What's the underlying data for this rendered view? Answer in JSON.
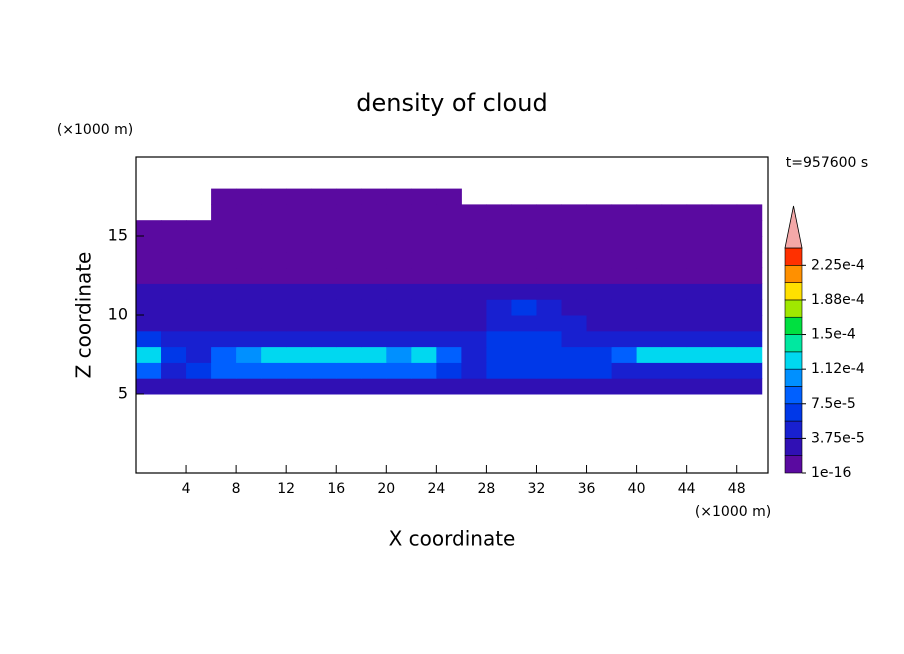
{
  "chart_data": {
    "type": "heatmap",
    "title": "density of cloud",
    "xlabel": "X coordinate",
    "ylabel": "Z coordinate",
    "x_unit": "(×1000 m)",
    "y_unit": "(×1000 m)",
    "annotation": "t=957600 s",
    "xlim": [
      0,
      50.5
    ],
    "ylim": [
      0,
      20
    ],
    "xticks": [
      4,
      8,
      12,
      16,
      20,
      24,
      28,
      32,
      36,
      40,
      44,
      48
    ],
    "yticks": [
      5,
      10,
      15
    ],
    "x": [
      1,
      3,
      5,
      7,
      9,
      11,
      13,
      15,
      17,
      19,
      21,
      23,
      25,
      27,
      29,
      31,
      33,
      35,
      37,
      39,
      41,
      43,
      45,
      47,
      49
    ],
    "y": [
      5.5,
      6.5,
      7.5,
      8.5,
      9.5,
      10.5,
      11.5,
      12.5,
      13.5,
      14.5,
      15.5,
      16.5,
      17.5
    ],
    "z": [
      [
        2e-05,
        2e-05,
        2e-05,
        2e-05,
        2e-05,
        2e-05,
        2e-05,
        2e-05,
        2e-05,
        2e-05,
        2e-05,
        2e-05,
        2e-05,
        2e-05,
        2e-05,
        2e-05,
        2e-05,
        2e-05,
        2e-05,
        2e-05,
        2e-05,
        2e-05,
        2e-05,
        2e-05,
        2e-05
      ],
      [
        8e-05,
        4e-05,
        6e-05,
        8e-05,
        8e-05,
        8e-05,
        8e-05,
        8e-05,
        8e-05,
        8e-05,
        8e-05,
        8e-05,
        6e-05,
        4e-05,
        6e-05,
        6e-05,
        6e-05,
        6e-05,
        6e-05,
        4e-05,
        4e-05,
        4e-05,
        4e-05,
        4e-05,
        4e-05
      ],
      [
        0.00012,
        6e-05,
        4e-05,
        8e-05,
        0.0001,
        0.00012,
        0.00012,
        0.00012,
        0.00012,
        0.00012,
        0.0001,
        0.00012,
        8e-05,
        4e-05,
        6e-05,
        6e-05,
        6e-05,
        6e-05,
        6e-05,
        8e-05,
        0.00012,
        0.00012,
        0.00012,
        0.00012,
        0.00012
      ],
      [
        6e-05,
        4e-05,
        4e-05,
        4e-05,
        4e-05,
        4e-05,
        4e-05,
        4e-05,
        4e-05,
        4e-05,
        4e-05,
        4e-05,
        4e-05,
        4e-05,
        6e-05,
        6e-05,
        6e-05,
        4e-05,
        4e-05,
        4e-05,
        4e-05,
        4e-05,
        4e-05,
        4e-05,
        4e-05
      ],
      [
        2e-05,
        2e-05,
        2e-05,
        2e-05,
        2e-05,
        2e-05,
        2e-05,
        2e-05,
        2e-05,
        2e-05,
        2e-05,
        2e-05,
        2e-05,
        2e-05,
        4e-05,
        4e-05,
        4e-05,
        4e-05,
        2e-05,
        2e-05,
        2e-05,
        2e-05,
        2e-05,
        2e-05,
        2e-05
      ],
      [
        2e-05,
        2e-05,
        2e-05,
        2e-05,
        2e-05,
        2e-05,
        2e-05,
        2e-05,
        2e-05,
        2e-05,
        2e-05,
        2e-05,
        2e-05,
        2e-05,
        4e-05,
        6e-05,
        4e-05,
        2e-05,
        2e-05,
        2e-05,
        2e-05,
        2e-05,
        2e-05,
        2e-05,
        2e-05
      ],
      [
        2e-05,
        2e-05,
        2e-05,
        2e-05,
        2e-05,
        2e-05,
        2e-05,
        2e-05,
        2e-05,
        2e-05,
        2e-05,
        2e-05,
        2e-05,
        2e-05,
        2e-05,
        2e-05,
        2e-05,
        2e-05,
        2e-05,
        2e-05,
        2e-05,
        2e-05,
        2e-05,
        2e-05,
        2e-05
      ],
      [
        1e-06,
        1e-06,
        1e-06,
        1e-06,
        1e-06,
        1e-06,
        1e-06,
        1e-06,
        1e-06,
        1e-06,
        1e-06,
        1e-06,
        1e-06,
        1e-06,
        1e-06,
        1e-06,
        1e-06,
        1e-06,
        1e-06,
        1e-06,
        1e-06,
        1e-06,
        1e-06,
        1e-06,
        1e-06
      ],
      [
        1e-06,
        1e-06,
        1e-06,
        1e-06,
        1e-06,
        1e-06,
        1e-06,
        1e-06,
        1e-06,
        1e-06,
        1e-06,
        1e-06,
        1e-06,
        1e-06,
        1e-06,
        1e-06,
        1e-06,
        1e-06,
        1e-06,
        1e-06,
        1e-06,
        1e-06,
        1e-06,
        1e-06,
        1e-06
      ],
      [
        1e-06,
        1e-06,
        1e-06,
        1e-06,
        1e-06,
        1e-06,
        1e-06,
        1e-06,
        1e-06,
        1e-06,
        1e-06,
        1e-06,
        1e-06,
        1e-06,
        1e-06,
        1e-06,
        1e-06,
        1e-06,
        1e-06,
        1e-06,
        1e-06,
        1e-06,
        1e-06,
        1e-06,
        1e-06
      ],
      [
        1e-06,
        1e-06,
        1e-06,
        1e-06,
        1e-06,
        1e-06,
        1e-06,
        1e-06,
        1e-06,
        1e-06,
        1e-06,
        1e-06,
        1e-06,
        1e-06,
        1e-06,
        1e-06,
        1e-06,
        1e-06,
        1e-06,
        1e-06,
        1e-06,
        1e-06,
        1e-06,
        1e-06,
        1e-06
      ],
      [
        null,
        null,
        null,
        1e-06,
        1e-06,
        1e-06,
        1e-06,
        1e-06,
        1e-06,
        1e-06,
        1e-06,
        1e-06,
        1e-06,
        1e-06,
        1e-06,
        1e-06,
        1e-06,
        1e-06,
        1e-06,
        1e-06,
        1e-06,
        1e-06,
        1e-06,
        1e-06,
        1e-06
      ],
      [
        null,
        null,
        null,
        1e-06,
        1e-06,
        1e-06,
        1e-06,
        1e-06,
        1e-06,
        1e-06,
        1e-06,
        1e-06,
        1e-06,
        null,
        null,
        null,
        null,
        null,
        null,
        null,
        null,
        null,
        null,
        null,
        null
      ]
    ],
    "colorbar": {
      "levels": [
        1e-16,
        1.875e-05,
        3.75e-05,
        5.625e-05,
        7.5e-05,
        9.375e-05,
        0.0001125,
        0.00013125,
        0.00015,
        0.00016875,
        0.0001875,
        0.00020625,
        0.000225,
        0.00024375
      ],
      "colors": [
        "#5a0aa0",
        "#3010b4",
        "#1820d0",
        "#0038e8",
        "#0060ff",
        "#0090ff",
        "#00d8f0",
        "#00e8a0",
        "#00e040",
        "#a0e800",
        "#ffe000",
        "#ff9000",
        "#ff3000"
      ],
      "over_color": "#f4a8a8",
      "ticks": [
        {
          "value": 1e-16,
          "label": "1e-16"
        },
        {
          "value": 3.75e-05,
          "label": "3.75e-5"
        },
        {
          "value": 7.5e-05,
          "label": "7.5e-5"
        },
        {
          "value": 0.0001125,
          "label": "1.12e-4"
        },
        {
          "value": 0.00015,
          "label": "1.5e-4"
        },
        {
          "value": 0.0001875,
          "label": "1.88e-4"
        },
        {
          "value": 0.000225,
          "label": "2.25e-4"
        }
      ]
    }
  }
}
